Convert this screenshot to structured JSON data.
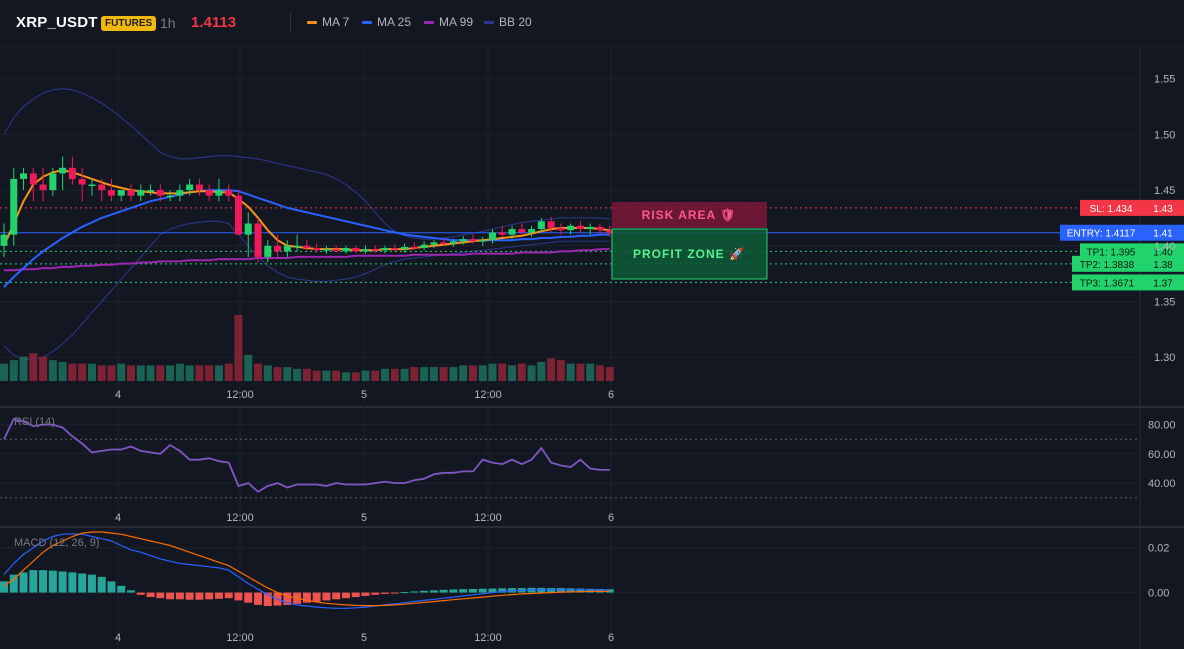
{
  "header": {
    "symbol": "XRP_USDT",
    "badge": "FUTURES",
    "timeframe": "1h",
    "last_price": "1.4113"
  },
  "legend": [
    {
      "label": "MA 7",
      "color": "#f7931a"
    },
    {
      "label": "MA 25",
      "color": "#2962ff"
    },
    {
      "label": "MA 99",
      "color": "#9c27b0"
    },
    {
      "label": "BB 20",
      "color": "#2b3a8f"
    }
  ],
  "colors": {
    "up": "#26a69a",
    "up_bright": "#22d36c",
    "down": "#ef1a5a",
    "macd_line": "#2962ff",
    "signal_line": "#ff6d00",
    "rsi": "#7e57c2"
  },
  "x_axis": [
    "4",
    "12:00",
    "5",
    "12:00",
    "6"
  ],
  "levels": {
    "sl_label": "SL: 1.434",
    "sl_axis": "1.43",
    "entry_label": "ENTRY: 1.4117",
    "entry_axis": "1.41",
    "tp1_label": "TP1: 1.395",
    "tp1_axis": "1.40",
    "tp2_label": "TP2: 1.3838",
    "tp2_axis": "1.38",
    "tp3_label": "TP3: 1.3671",
    "tp3_axis": "1.37"
  },
  "zones": {
    "risk_label": "RISK AREA 🛡",
    "profit_label": "PROFIT ZONE 🚀"
  },
  "rsi": {
    "title": "RSI (14)",
    "ticks": [
      "80.00",
      "60.00",
      "40.00"
    ],
    "upper": 70,
    "lower": 30
  },
  "macd": {
    "title": "MACD (12, 26, 9)",
    "ticks": [
      "0.02",
      "0.00"
    ]
  },
  "chart_data": [
    {
      "type": "candlestick",
      "yticks": [
        "1.55",
        "1.50",
        "1.45",
        "1.40",
        "1.35",
        "1.30"
      ],
      "ylim": [
        1.275,
        1.565
      ],
      "candles": [
        [
          1.4,
          1.42,
          1.39,
          1.41
        ],
        [
          1.41,
          1.47,
          1.4,
          1.46
        ],
        [
          1.46,
          1.47,
          1.45,
          1.465
        ],
        [
          1.465,
          1.47,
          1.44,
          1.455
        ],
        [
          1.455,
          1.47,
          1.44,
          1.45
        ],
        [
          1.45,
          1.47,
          1.445,
          1.465
        ],
        [
          1.465,
          1.48,
          1.45,
          1.47
        ],
        [
          1.47,
          1.48,
          1.455,
          1.46
        ],
        [
          1.46,
          1.47,
          1.44,
          1.455
        ],
        [
          1.455,
          1.46,
          1.445,
          1.455
        ],
        [
          1.455,
          1.46,
          1.44,
          1.45
        ],
        [
          1.45,
          1.46,
          1.44,
          1.445
        ],
        [
          1.445,
          1.45,
          1.44,
          1.45
        ],
        [
          1.45,
          1.455,
          1.44,
          1.445
        ],
        [
          1.445,
          1.455,
          1.44,
          1.45
        ],
        [
          1.45,
          1.455,
          1.445,
          1.45
        ],
        [
          1.45,
          1.455,
          1.44,
          1.445
        ],
        [
          1.445,
          1.45,
          1.44,
          1.445
        ],
        [
          1.445,
          1.455,
          1.44,
          1.45
        ],
        [
          1.45,
          1.46,
          1.445,
          1.455
        ],
        [
          1.455,
          1.46,
          1.445,
          1.45
        ],
        [
          1.45,
          1.455,
          1.44,
          1.445
        ],
        [
          1.445,
          1.46,
          1.44,
          1.45
        ],
        [
          1.45,
          1.455,
          1.44,
          1.445
        ],
        [
          1.445,
          1.45,
          1.41,
          1.41
        ],
        [
          1.41,
          1.43,
          1.39,
          1.42
        ],
        [
          1.42,
          1.425,
          1.385,
          1.39
        ],
        [
          1.39,
          1.405,
          1.385,
          1.4
        ],
        [
          1.4,
          1.41,
          1.39,
          1.395
        ],
        [
          1.395,
          1.405,
          1.39,
          1.4
        ],
        [
          1.4,
          1.41,
          1.395,
          1.4
        ],
        [
          1.4,
          1.405,
          1.395,
          1.398
        ],
        [
          1.398,
          1.402,
          1.394,
          1.396
        ],
        [
          1.396,
          1.4,
          1.393,
          1.397
        ],
        [
          1.397,
          1.4,
          1.394,
          1.395
        ],
        [
          1.395,
          1.4,
          1.393,
          1.398
        ],
        [
          1.398,
          1.4,
          1.394,
          1.395
        ],
        [
          1.395,
          1.4,
          1.393,
          1.397
        ],
        [
          1.397,
          1.4,
          1.394,
          1.396
        ],
        [
          1.396,
          1.4,
          1.393,
          1.398
        ],
        [
          1.398,
          1.401,
          1.395,
          1.397
        ],
        [
          1.397,
          1.402,
          1.394,
          1.399
        ],
        [
          1.399,
          1.403,
          1.396,
          1.398
        ],
        [
          1.398,
          1.404,
          1.396,
          1.401
        ],
        [
          1.401,
          1.405,
          1.398,
          1.403
        ],
        [
          1.403,
          1.407,
          1.4,
          1.402
        ],
        [
          1.402,
          1.406,
          1.399,
          1.404
        ],
        [
          1.404,
          1.409,
          1.401,
          1.406
        ],
        [
          1.406,
          1.41,
          1.402,
          1.404
        ],
        [
          1.404,
          1.408,
          1.4,
          1.405
        ],
        [
          1.405,
          1.415,
          1.402,
          1.412
        ],
        [
          1.412,
          1.418,
          1.408,
          1.41
        ],
        [
          1.41,
          1.418,
          1.406,
          1.415
        ],
        [
          1.415,
          1.42,
          1.41,
          1.412
        ],
        [
          1.412,
          1.418,
          1.408,
          1.415
        ],
        [
          1.415,
          1.425,
          1.412,
          1.422
        ],
        [
          1.422,
          1.426,
          1.412,
          1.416
        ],
        [
          1.416,
          1.42,
          1.41,
          1.414
        ],
        [
          1.414,
          1.42,
          1.41,
          1.418
        ],
        [
          1.418,
          1.422,
          1.412,
          1.415
        ],
        [
          1.415,
          1.42,
          1.41,
          1.417
        ],
        [
          1.417,
          1.42,
          1.41,
          1.414
        ],
        [
          1.414,
          1.418,
          1.408,
          1.4113
        ]
      ],
      "volume": [
        10,
        12,
        14,
        16,
        14,
        12,
        11,
        10,
        10,
        10,
        9,
        9,
        10,
        9,
        9,
        9,
        9,
        9,
        10,
        9,
        9,
        9,
        9,
        10,
        38,
        15,
        10,
        9,
        8,
        8,
        7,
        7,
        6,
        6,
        6,
        5,
        5,
        6,
        6,
        7,
        7,
        7,
        8,
        8,
        8,
        8,
        8,
        9,
        9,
        9,
        10,
        10,
        9,
        10,
        9,
        11,
        13,
        12,
        10,
        10,
        10,
        9,
        8
      ],
      "ma7": [
        1.4,
        1.42,
        1.44,
        1.455,
        1.462,
        1.466,
        1.468,
        1.466,
        1.463,
        1.46,
        1.457,
        1.454,
        1.452,
        1.45,
        1.449,
        1.448,
        1.447,
        1.447,
        1.447,
        1.448,
        1.449,
        1.449,
        1.448,
        1.448,
        1.442,
        1.435,
        1.425,
        1.414,
        1.405,
        1.4,
        1.399,
        1.398,
        1.397,
        1.397,
        1.397,
        1.397,
        1.396,
        1.396,
        1.396,
        1.397,
        1.397,
        1.397,
        1.398,
        1.399,
        1.4,
        1.401,
        1.402,
        1.403,
        1.404,
        1.405,
        1.406,
        1.407,
        1.408,
        1.409,
        1.411,
        1.413,
        1.415,
        1.416,
        1.416,
        1.416,
        1.416,
        1.415,
        1.414
      ],
      "ma25": [
        1.363,
        1.372,
        1.38,
        1.388,
        1.395,
        1.401,
        1.407,
        1.412,
        1.417,
        1.421,
        1.425,
        1.428,
        1.431,
        1.434,
        1.437,
        1.44,
        1.442,
        1.444,
        1.446,
        1.448,
        1.449,
        1.45,
        1.45,
        1.45,
        1.449,
        1.446,
        1.443,
        1.44,
        1.437,
        1.434,
        1.432,
        1.43,
        1.428,
        1.426,
        1.424,
        1.422,
        1.42,
        1.418,
        1.416,
        1.414,
        1.412,
        1.41,
        1.409,
        1.408,
        1.407,
        1.406,
        1.405,
        1.405,
        1.405,
        1.405,
        1.405,
        1.405,
        1.405,
        1.406,
        1.406,
        1.407,
        1.407,
        1.408,
        1.408,
        1.409,
        1.409,
        1.41,
        1.41
      ],
      "ma99": [
        1.378,
        1.378,
        1.379,
        1.379,
        1.38,
        1.38,
        1.381,
        1.381,
        1.382,
        1.382,
        1.383,
        1.383,
        1.384,
        1.384,
        1.385,
        1.385,
        1.386,
        1.386,
        1.386,
        1.387,
        1.387,
        1.387,
        1.388,
        1.388,
        1.388,
        1.388,
        1.389,
        1.389,
        1.389,
        1.389,
        1.39,
        1.39,
        1.39,
        1.39,
        1.39,
        1.39,
        1.391,
        1.391,
        1.391,
        1.391,
        1.391,
        1.391,
        1.392,
        1.392,
        1.392,
        1.392,
        1.392,
        1.392,
        1.393,
        1.393,
        1.393,
        1.393,
        1.393,
        1.394,
        1.394,
        1.394,
        1.394,
        1.395,
        1.395,
        1.396,
        1.396,
        1.397,
        1.397
      ],
      "bb_upper": [
        1.5,
        1.515,
        1.525,
        1.532,
        1.537,
        1.54,
        1.541,
        1.54,
        1.537,
        1.533,
        1.528,
        1.522,
        1.515,
        1.508,
        1.5,
        1.492,
        1.484,
        1.48,
        1.478,
        1.478,
        1.479,
        1.48,
        1.481,
        1.481,
        1.48,
        1.479,
        1.478,
        1.476,
        1.474,
        1.472,
        1.47,
        1.468,
        1.466,
        1.464,
        1.46,
        1.455,
        1.448,
        1.44,
        1.43,
        1.42,
        1.413,
        1.409,
        1.407,
        1.406,
        1.406,
        1.407,
        1.408,
        1.41,
        1.411,
        1.413,
        1.415,
        1.417,
        1.419,
        1.421,
        1.422,
        1.423,
        1.424,
        1.425,
        1.425,
        1.425,
        1.425,
        1.425,
        1.424
      ],
      "bb_lower": [
        1.31,
        1.302,
        1.298,
        1.298,
        1.3,
        1.305,
        1.312,
        1.32,
        1.33,
        1.34,
        1.35,
        1.36,
        1.37,
        1.38,
        1.39,
        1.4,
        1.41,
        1.415,
        1.418,
        1.42,
        1.421,
        1.422,
        1.422,
        1.42,
        1.41,
        1.4,
        1.39,
        1.382,
        1.376,
        1.372,
        1.37,
        1.369,
        1.368,
        1.368,
        1.369,
        1.37,
        1.372,
        1.375,
        1.379,
        1.383,
        1.386,
        1.388,
        1.389,
        1.39,
        1.391,
        1.392,
        1.393,
        1.394,
        1.395,
        1.396,
        1.397,
        1.398,
        1.399,
        1.4,
        1.401,
        1.402,
        1.403,
        1.404,
        1.404,
        1.404,
        1.404,
        1.404,
        1.404
      ]
    },
    {
      "type": "line",
      "name": "RSI (14)",
      "ylim": [
        25,
        90
      ],
      "values": [
        70,
        84,
        82,
        79,
        80,
        80,
        78,
        72,
        67,
        61,
        62,
        63,
        63,
        65,
        62,
        61,
        60,
        66,
        62,
        56,
        56,
        57,
        55,
        54,
        38,
        40,
        34,
        38,
        40,
        37,
        39,
        39,
        39,
        38,
        40,
        39,
        39,
        39,
        40,
        41,
        40,
        40,
        42,
        43,
        46,
        47,
        47,
        48,
        48,
        56,
        54,
        53,
        56,
        53,
        56,
        64,
        54,
        52,
        51,
        56,
        50,
        49,
        49
      ]
    },
    {
      "type": "bar+line",
      "name": "MACD (12, 26, 9)",
      "ylim": [
        -0.01,
        0.027
      ],
      "histogram": [
        0.005,
        0.008,
        0.009,
        0.01,
        0.01,
        0.0098,
        0.0094,
        0.009,
        0.0085,
        0.008,
        0.007,
        0.005,
        0.003,
        0.001,
        -0.001,
        -0.002,
        -0.0025,
        -0.003,
        -0.003,
        -0.0032,
        -0.0032,
        -0.003,
        -0.0028,
        -0.0025,
        -0.0035,
        -0.0045,
        -0.0055,
        -0.006,
        -0.0058,
        -0.0055,
        -0.005,
        -0.0045,
        -0.004,
        -0.0035,
        -0.003,
        -0.0025,
        -0.002,
        -0.0015,
        -0.001,
        -0.0006,
        -0.0002,
        0.0002,
        0.0005,
        0.0008,
        0.001,
        0.0012,
        0.0014,
        0.0015,
        0.0016,
        0.0017,
        0.0018,
        0.0019,
        0.002,
        0.002,
        0.0021,
        0.0021,
        0.002,
        0.002,
        0.0019,
        0.0018,
        0.0017,
        0.0016,
        0.0015
      ],
      "macd": [
        0.008,
        0.013,
        0.017,
        0.02,
        0.023,
        0.025,
        0.026,
        0.0262,
        0.026,
        0.025,
        0.024,
        0.023,
        0.021,
        0.019,
        0.018,
        0.0165,
        0.015,
        0.014,
        0.013,
        0.0125,
        0.012,
        0.0115,
        0.011,
        0.01,
        0.007,
        0.004,
        0.0015,
        -0.001,
        -0.003,
        -0.0045,
        -0.0055,
        -0.006,
        -0.0065,
        -0.0068,
        -0.007,
        -0.007,
        -0.0068,
        -0.0065,
        -0.006,
        -0.0055,
        -0.005,
        -0.0045,
        -0.004,
        -0.0035,
        -0.003,
        -0.0025,
        -0.002,
        -0.0015,
        -0.001,
        -0.0005,
        0.0,
        0.0005,
        0.0008,
        0.001,
        0.0012,
        0.0013,
        0.0013,
        0.0013,
        0.0013,
        0.0013,
        0.0013,
        0.0012,
        0.0012
      ],
      "signal": [
        0.003,
        0.006,
        0.01,
        0.014,
        0.018,
        0.021,
        0.023,
        0.025,
        0.0265,
        0.027,
        0.027,
        0.0265,
        0.026,
        0.025,
        0.024,
        0.023,
        0.022,
        0.021,
        0.0195,
        0.018,
        0.0165,
        0.015,
        0.0135,
        0.012,
        0.0095,
        0.007,
        0.0045,
        0.002,
        0.0,
        -0.0015,
        -0.0025,
        -0.0035,
        -0.0042,
        -0.0048,
        -0.0052,
        -0.0055,
        -0.0057,
        -0.0058,
        -0.0058,
        -0.0057,
        -0.0055,
        -0.0052,
        -0.0048,
        -0.0044,
        -0.004,
        -0.0036,
        -0.0032,
        -0.0028,
        -0.0024,
        -0.002,
        -0.0016,
        -0.0012,
        -0.0009,
        -0.0006,
        -0.0004,
        -0.0002,
        0.0,
        0.0002,
        0.0003,
        0.0004,
        0.0005,
        0.0005,
        0.0005
      ]
    }
  ]
}
